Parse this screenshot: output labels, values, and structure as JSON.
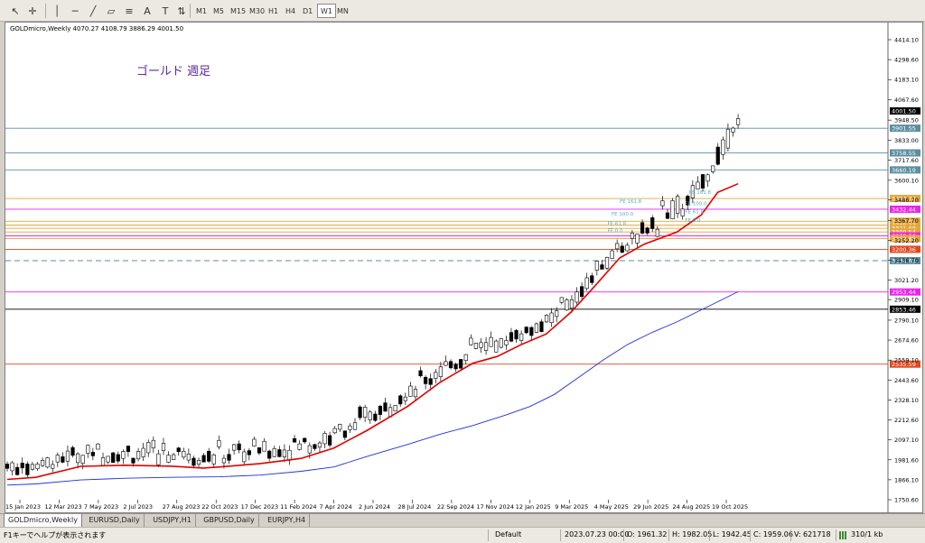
{
  "toolbar": {
    "timeframes": [
      "M1",
      "M5",
      "M15",
      "M30",
      "H1",
      "H4",
      "D1",
      "W1",
      "MN"
    ],
    "active_timeframe": "W1"
  },
  "chart": {
    "symbol_info": "GOLDmicro,Weekly  4070.27 4108.79 3886.29 4001.50",
    "annotation": "ゴールド  週足",
    "fib_labels": [
      "FE 161.8",
      "FE 100.0",
      "FE 61.8",
      "FE 0.0",
      "FE 161.8",
      "FE 100.0",
      "FE 61.8",
      "FE 0.0"
    ]
  },
  "chart_data": {
    "type": "candlestick",
    "title": "GOLDmicro,Weekly",
    "ohlc_last": {
      "open": 4070.27,
      "high": 4108.79,
      "low": 3886.29,
      "close": 4001.5
    },
    "ylim": [
      1750.6,
      4414.1
    ],
    "price_ticks": [
      "4414.10",
      "4298.60",
      "4183.10",
      "4067.60",
      "3948.50",
      "3833.00",
      "3717.60",
      "3600.10",
      "3486.70",
      "3367.70",
      "3252.20",
      "3136.70",
      "3021.20",
      "2909.10",
      "2790.10",
      "2674.60",
      "2559.10",
      "2443.60",
      "2328.10",
      "2212.60",
      "2097.10",
      "1981.60",
      "1866.10",
      "1750.60"
    ],
    "date_ticks": [
      "15 Jan 2023",
      "12 Mar 2023",
      "7 May 2023",
      "2 Jul 2023",
      "27 Aug 2023",
      "22 Oct 2023",
      "17 Dec 2023",
      "11 Feb 2024",
      "7 Apr 2024",
      "2 Jun 2024",
      "28 Jul 2024",
      "22 Sep 2024",
      "17 Nov 2024",
      "12 Jan 2025",
      "9 Mar 2025",
      "4 May 2025",
      "29 Jun 2025",
      "24 Aug 2025",
      "19 Oct 2025"
    ],
    "horizontal_levels": [
      {
        "price": "3901.55",
        "color": "#5b8e9e",
        "label": "3901.55"
      },
      {
        "price": "3758.55",
        "color": "#5b8e9e",
        "label": "3758.55"
      },
      {
        "price": "3660.19",
        "color": "#5b8e9e",
        "label": "3660.19"
      },
      {
        "price": "3494.74",
        "color": "#e5a63a",
        "label": "3494.74"
      },
      {
        "price": "3432.44",
        "color": "#ee22ee",
        "label": "3432.44"
      },
      {
        "price": "3362.91",
        "color": "#e5a63a",
        "label": "3362.91"
      },
      {
        "price": "3340.23",
        "color": "#e5a63a",
        "label": "3340.23"
      },
      {
        "price": "3321.68",
        "color": "#e5a63a",
        "label": "3321.68"
      },
      {
        "price": "3300.54",
        "color": "#e5a63a",
        "label": "3300.54"
      },
      {
        "price": "3278.26",
        "color": "#ee22ee",
        "label": "3278.26"
      },
      {
        "price": "3262.85",
        "color": "#e5a63a",
        "label": "3262.85"
      },
      {
        "price": "3200.36",
        "color": "#e0481f",
        "label": "3200.36"
      },
      {
        "price": "3134.63",
        "color": "#5b8e9e",
        "label": "3134.63",
        "dashed": true
      },
      {
        "price": "2953.44",
        "color": "#ee22ee",
        "label": "2953.44"
      },
      {
        "price": "2853.46",
        "color": "#000000",
        "label": "2853.46"
      },
      {
        "price": "2535.59",
        "color": "#e0481f",
        "label": "2535.59"
      }
    ],
    "current_price": "4001.50",
    "ma_series": [
      {
        "name": "",
        "color": "#e00000",
        "points": [
          [
            0,
            1868
          ],
          [
            0.035,
            1880
          ],
          [
            0.09,
            1944
          ],
          [
            0.145,
            1950
          ],
          [
            0.2,
            1945
          ],
          [
            0.24,
            1934
          ],
          [
            0.26,
            1940
          ],
          [
            0.31,
            1960
          ],
          [
            0.36,
            1990
          ],
          [
            0.4,
            2050
          ],
          [
            0.44,
            2150
          ],
          [
            0.49,
            2290
          ],
          [
            0.53,
            2430
          ],
          [
            0.57,
            2540
          ],
          [
            0.6,
            2580
          ],
          [
            0.63,
            2650
          ],
          [
            0.66,
            2710
          ],
          [
            0.69,
            2835
          ],
          [
            0.72,
            2990
          ],
          [
            0.75,
            3150
          ],
          [
            0.78,
            3230
          ],
          [
            0.82,
            3300
          ],
          [
            0.85,
            3400
          ],
          [
            0.87,
            3530
          ],
          [
            0.895,
            3580
          ]
        ]
      },
      {
        "name": "",
        "color": "#1f2fe0",
        "points": [
          [
            0,
            1835
          ],
          [
            0.035,
            1842
          ],
          [
            0.09,
            1865
          ],
          [
            0.145,
            1875
          ],
          [
            0.2,
            1880
          ],
          [
            0.26,
            1883
          ],
          [
            0.31,
            1893
          ],
          [
            0.36,
            1915
          ],
          [
            0.4,
            1940
          ],
          [
            0.44,
            2000
          ],
          [
            0.49,
            2070
          ],
          [
            0.53,
            2130
          ],
          [
            0.57,
            2180
          ],
          [
            0.61,
            2240
          ],
          [
            0.64,
            2290
          ],
          [
            0.67,
            2360
          ],
          [
            0.7,
            2460
          ],
          [
            0.73,
            2560
          ],
          [
            0.76,
            2650
          ],
          [
            0.79,
            2720
          ],
          [
            0.82,
            2780
          ],
          [
            0.85,
            2850
          ],
          [
            0.88,
            2920
          ],
          [
            0.895,
            2955
          ]
        ]
      }
    ],
    "grid": false,
    "legend": "none"
  },
  "tabs": [
    "GOLDmicro,Weekly",
    "EURUSD,Daily",
    "USDJPY,H1",
    "GBPUSD,Daily",
    "EURJPY,H4"
  ],
  "active_tab": "GOLDmicro,Weekly",
  "status": {
    "help": "F1キーでヘルプが表示されます",
    "profile": "Default",
    "datetime": "2023.07.23 00:00",
    "open": "O: 1961.32",
    "high": "H: 1982.05",
    "low": "L: 1942.45",
    "close": "C: 1959.06",
    "volume": "V: 621718",
    "traffic": "310/1 kb"
  }
}
